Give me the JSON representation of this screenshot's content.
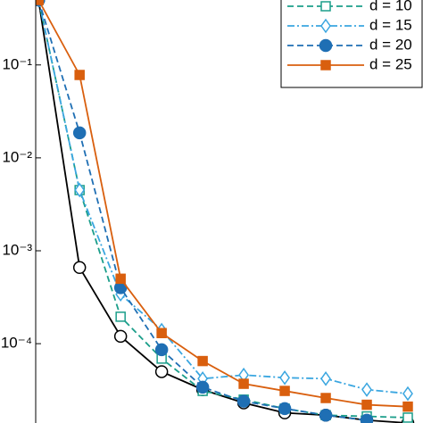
{
  "chart_data": {
    "type": "line",
    "log_y": true,
    "xlim": [
      -0.07,
      9.37
    ],
    "ylim": [
      1.4e-05,
      0.5
    ],
    "yticks": [
      {
        "value": 0.1,
        "label": "10⁻¹"
      },
      {
        "value": 0.01,
        "label": "10⁻²"
      },
      {
        "value": 0.001,
        "label": "10⁻³"
      },
      {
        "value": 0.0001,
        "label": "10⁻⁴"
      }
    ],
    "legend": "top-right",
    "series": [
      {
        "color": "#000000",
        "linestyle": "solid",
        "marker": "circle-open",
        "x": [
          0,
          1,
          2,
          3,
          4,
          5,
          6,
          7,
          8,
          9
        ],
        "values": [
          0.5,
          0.00066,
          0.00012,
          5e-05,
          3.2e-05,
          2.3e-05,
          1.8e-05,
          1.7e-05,
          1.5e-05,
          1.4e-05
        ]
      },
      {
        "name": "d = 10",
        "color": "#1b9e8a",
        "linestyle": "dashed",
        "marker": "square-open",
        "x": [
          0,
          1,
          2,
          3,
          4,
          5,
          6,
          7,
          8,
          9
        ],
        "values": [
          0.5,
          0.0045,
          0.000195,
          6.9e-05,
          3.1e-05,
          2.5e-05,
          2e-05,
          1.7e-05,
          1.65e-05,
          1.6e-05
        ]
      },
      {
        "name": "d = 15",
        "color": "#3aa6e0",
        "linestyle": "dashdot",
        "marker": "diamond-open",
        "x": [
          0,
          1,
          2,
          3,
          4,
          5,
          6,
          7,
          8,
          9
        ],
        "values": [
          0.5,
          0.0045,
          0.00034,
          0.00014,
          4.2e-05,
          4.6e-05,
          4.3e-05,
          4.2e-05,
          3.2e-05,
          2.9e-05
        ]
      },
      {
        "name": "d = 20",
        "color": "#1f6fb4",
        "linestyle": "dashed",
        "marker": "circle-filled",
        "x": [
          0,
          1,
          2,
          3,
          4,
          5,
          6,
          7,
          8
        ],
        "values": [
          0.5,
          0.0186,
          0.0004,
          8.6e-05,
          3.4e-05,
          2.4e-05,
          2e-05,
          1.7e-05,
          1.5e-05
        ]
      },
      {
        "name": "d = 25",
        "color": "#d95f0e",
        "linestyle": "solid",
        "marker": "square-filled",
        "x": [
          0,
          1,
          2,
          3,
          4,
          5,
          6,
          7,
          8,
          9
        ],
        "values": [
          0.5,
          0.078,
          0.0005,
          0.00013,
          6.5e-05,
          3.7e-05,
          3.1e-05,
          2.6e-05,
          2.2e-05,
          2.1e-05
        ]
      }
    ]
  }
}
